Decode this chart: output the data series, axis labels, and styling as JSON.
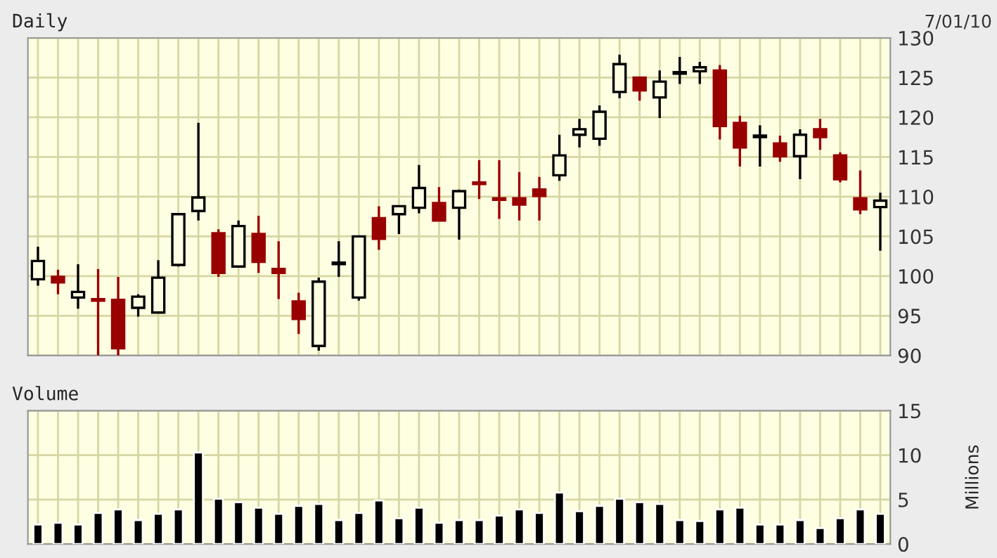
{
  "chart_data": [
    {
      "type": "candlestick",
      "title": "Daily",
      "annotations": [
        "7/01/10"
      ],
      "categories": [
        null,
        null,
        null,
        null,
        null,
        null,
        null,
        null,
        null,
        null,
        null,
        null,
        null,
        null,
        null,
        null,
        null,
        null,
        null,
        null,
        null,
        null,
        null,
        null,
        null,
        null,
        null,
        null,
        null,
        null,
        null,
        null,
        null,
        null,
        null,
        null,
        null,
        null,
        null,
        null,
        null,
        null,
        null
      ],
      "ohlc": [
        [
          99.6,
          103.7,
          98.8,
          101.9
        ],
        [
          99.9,
          100.8,
          97.7,
          99.2
        ],
        [
          97.3,
          101.5,
          95.9,
          98.0
        ],
        [
          97.1,
          100.9,
          90.0,
          96.9
        ],
        [
          97.0,
          99.9,
          90.0,
          90.9
        ],
        [
          96.0,
          97.7,
          94.9,
          97.4
        ],
        [
          95.4,
          102.0,
          95.4,
          99.8
        ],
        [
          101.4,
          107.8,
          101.2,
          107.8
        ],
        [
          108.2,
          119.3,
          107.0,
          109.9
        ],
        [
          105.4,
          105.9,
          99.9,
          100.4
        ],
        [
          101.2,
          107.0,
          101.2,
          106.3
        ],
        [
          105.3,
          107.6,
          100.4,
          101.8
        ],
        [
          100.9,
          104.4,
          97.1,
          100.4
        ],
        [
          96.8,
          97.9,
          92.7,
          94.6
        ],
        [
          91.2,
          99.8,
          90.6,
          99.3
        ],
        [
          101.5,
          104.4,
          99.9,
          101.7
        ],
        [
          97.3,
          105.0,
          96.9,
          105.0
        ],
        [
          107.3,
          108.8,
          103.3,
          104.7
        ],
        [
          107.8,
          108.8,
          105.3,
          108.8
        ],
        [
          108.6,
          114.0,
          107.9,
          111.1
        ],
        [
          109.2,
          111.2,
          107.0,
          107.0
        ],
        [
          108.6,
          110.9,
          104.6,
          110.7
        ],
        [
          111.8,
          114.6,
          109.7,
          111.6
        ],
        [
          109.8,
          114.6,
          107.2,
          109.6
        ],
        [
          109.8,
          113.1,
          107.0,
          109.0
        ],
        [
          110.9,
          112.5,
          107.0,
          110.1
        ],
        [
          112.7,
          117.8,
          112.0,
          115.2
        ],
        [
          117.8,
          119.8,
          116.2,
          118.5
        ],
        [
          117.3,
          121.5,
          116.4,
          120.7
        ],
        [
          123.2,
          127.9,
          122.4,
          126.7
        ],
        [
          125.0,
          125.0,
          122.1,
          123.4
        ],
        [
          122.5,
          125.9,
          119.9,
          124.5
        ],
        [
          125.5,
          127.6,
          124.2,
          125.7
        ],
        [
          125.8,
          127.0,
          124.2,
          126.3
        ],
        [
          125.9,
          126.6,
          117.2,
          118.9
        ],
        [
          119.3,
          120.2,
          113.8,
          116.2
        ],
        [
          117.5,
          119.0,
          113.8,
          117.7
        ],
        [
          116.7,
          117.7,
          114.4,
          115.1
        ],
        [
          115.1,
          118.5,
          112.2,
          117.8
        ],
        [
          118.5,
          119.8,
          115.9,
          117.5
        ],
        [
          115.2,
          115.6,
          111.8,
          112.2
        ],
        [
          109.8,
          113.3,
          107.8,
          108.4
        ],
        [
          108.7,
          110.5,
          103.2,
          109.5
        ]
      ],
      "colors": [
        "#000000",
        "#990000",
        "#000000",
        "#990000",
        "#990000",
        "#000000",
        "#000000",
        "#000000",
        "#000000",
        "#990000",
        "#000000",
        "#990000",
        "#990000",
        "#990000",
        "#000000",
        "#000000",
        "#000000",
        "#990000",
        "#000000",
        "#000000",
        "#990000",
        "#000000",
        "#990000",
        "#990000",
        "#990000",
        "#990000",
        "#000000",
        "#000000",
        "#000000",
        "#000000",
        "#990000",
        "#000000",
        "#000000",
        "#000000",
        "#990000",
        "#990000",
        "#000000",
        "#990000",
        "#000000",
        "#990000",
        "#990000",
        "#990000",
        "#000000"
      ],
      "ylim": [
        90,
        130
      ],
      "yticks": [
        90,
        95,
        100,
        105,
        110,
        115,
        120,
        125,
        130
      ],
      "grid": true
    },
    {
      "type": "bar",
      "title": "Volume",
      "ylabel": "Millions",
      "categories": [
        null,
        null,
        null,
        null,
        null,
        null,
        null,
        null,
        null,
        null,
        null,
        null,
        null,
        null,
        null,
        null,
        null,
        null,
        null,
        null,
        null,
        null,
        null,
        null,
        null,
        null,
        null,
        null,
        null,
        null,
        null,
        null,
        null,
        null,
        null,
        null,
        null,
        null,
        null,
        null,
        null,
        null,
        null
      ],
      "values": [
        2.2,
        2.4,
        2.2,
        3.5,
        3.9,
        2.7,
        3.4,
        3.9,
        10.3,
        5.1,
        4.7,
        4.1,
        3.4,
        4.3,
        4.5,
        2.7,
        3.5,
        4.9,
        2.9,
        4.1,
        2.4,
        2.7,
        2.7,
        3.2,
        3.9,
        3.5,
        5.8,
        3.7,
        4.3,
        5.1,
        4.7,
        4.5,
        2.7,
        2.6,
        3.9,
        4.1,
        2.2,
        2.2,
        2.7,
        1.8,
        2.9,
        3.9,
        3.4
      ],
      "color": "#000000",
      "ylim": [
        0,
        15
      ],
      "yticks": [
        0,
        5,
        10,
        15
      ],
      "grid": true
    }
  ]
}
